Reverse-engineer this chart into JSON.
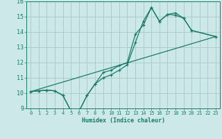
{
  "title": "",
  "xlabel": "Humidex (Indice chaleur)",
  "bg_color": "#cce8e8",
  "grid_color": "#aacccc",
  "line_color": "#1a7a6a",
  "xlim": [
    -0.5,
    23.5
  ],
  "ylim": [
    9,
    16
  ],
  "yticks": [
    9,
    10,
    11,
    12,
    13,
    14,
    15,
    16
  ],
  "xticks": [
    0,
    1,
    2,
    3,
    4,
    5,
    6,
    7,
    8,
    9,
    10,
    11,
    12,
    13,
    14,
    15,
    16,
    17,
    18,
    19,
    20,
    21,
    22,
    23
  ],
  "line1_x": [
    0,
    1,
    2,
    3,
    4,
    5,
    6,
    7,
    8,
    9,
    10,
    11,
    12,
    13,
    14,
    15,
    16,
    17,
    18,
    19,
    20,
    23
  ],
  "line1_y": [
    10.1,
    10.15,
    10.2,
    10.15,
    9.85,
    8.85,
    8.8,
    9.85,
    10.6,
    11.35,
    11.5,
    11.8,
    12.0,
    13.85,
    14.45,
    15.6,
    14.7,
    15.15,
    15.25,
    14.9,
    14.1,
    13.7
  ],
  "line2_x": [
    0,
    1,
    2,
    3,
    4,
    5,
    6,
    7,
    8,
    9,
    10,
    11,
    12,
    13,
    14,
    15,
    16,
    17,
    18,
    19,
    20,
    23
  ],
  "line2_y": [
    10.1,
    10.15,
    10.2,
    10.15,
    9.85,
    8.85,
    8.8,
    9.85,
    10.6,
    11.0,
    11.2,
    11.5,
    11.85,
    13.3,
    14.7,
    15.6,
    14.7,
    15.15,
    15.1,
    14.9,
    14.1,
    13.7
  ],
  "line3_x": [
    0,
    23
  ],
  "line3_y": [
    10.1,
    13.7
  ]
}
